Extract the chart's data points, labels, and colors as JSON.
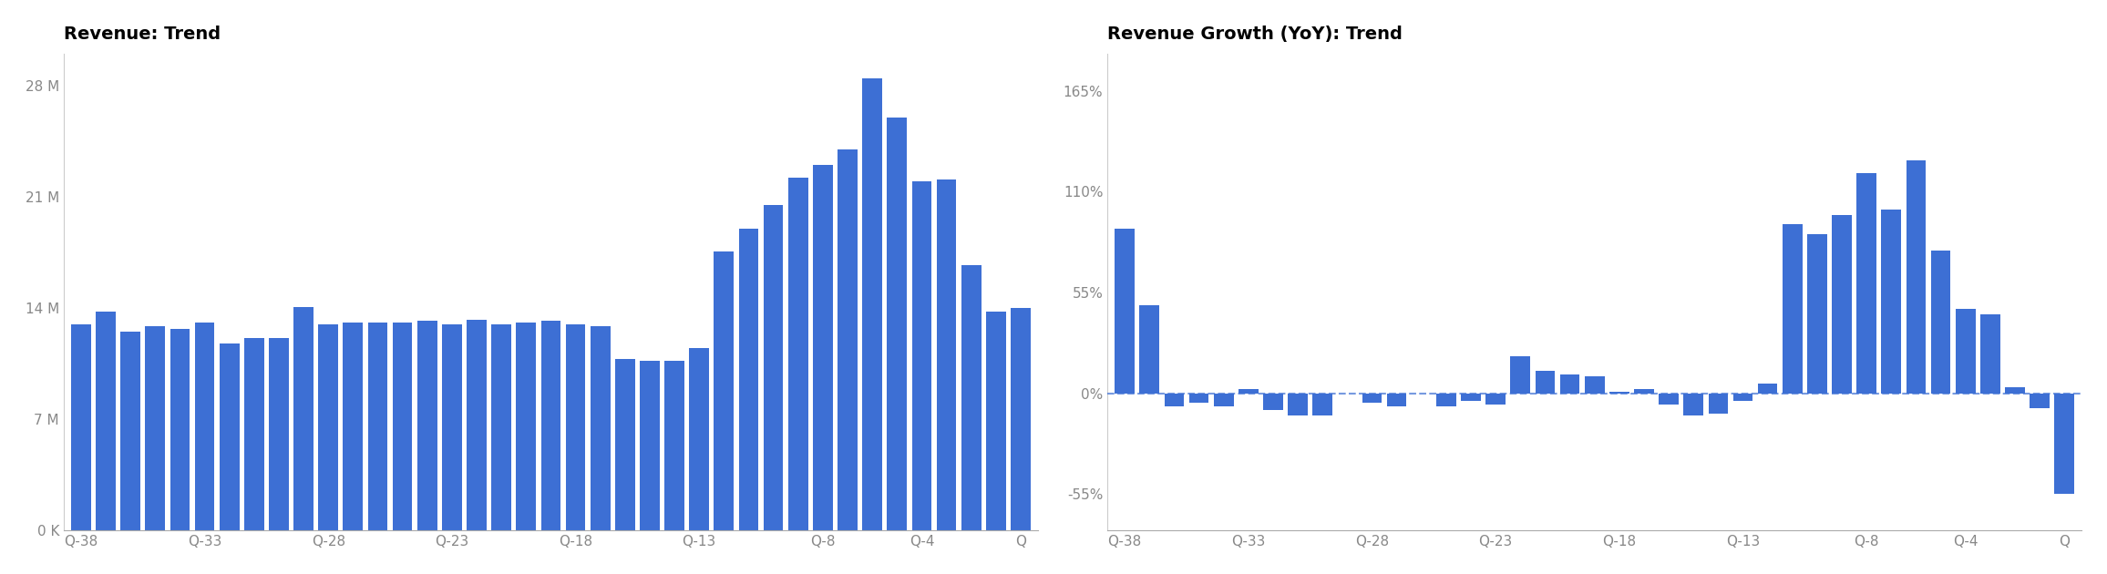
{
  "title1": "Revenue: Trend",
  "title2": "Revenue Growth (YoY): Trend",
  "bar_color": "#3d6fd4",
  "background_color": "#ffffff",
  "revenue_values": [
    13000000,
    13800000,
    12500000,
    12900000,
    12700000,
    13100000,
    11800000,
    12100000,
    12100000,
    14100000,
    13000000,
    13100000,
    13100000,
    13100000,
    13200000,
    13000000,
    13300000,
    13000000,
    13100000,
    13200000,
    13000000,
    12900000,
    10800000,
    10700000,
    10700000,
    11500000,
    17600000,
    19000000,
    20500000,
    22200000,
    23000000,
    24000000,
    28500000,
    26000000,
    22000000,
    22100000,
    16700000,
    13800000,
    14000000
  ],
  "yoy_values": [
    90,
    48,
    -7,
    -5,
    -7,
    2,
    -9,
    -12,
    -12,
    0,
    -5,
    -7,
    0,
    -7,
    -4,
    -6,
    20,
    12,
    10,
    9,
    1,
    2,
    -6,
    -12,
    -11,
    -4,
    5,
    92,
    87,
    97,
    120,
    100,
    127,
    78,
    46,
    43,
    3,
    -8,
    -55
  ],
  "x_labels_rev": [
    "Q-38",
    "Q-33",
    "Q-28",
    "Q-23",
    "Q-18",
    "Q-13",
    "Q-8",
    "Q-4",
    "Q"
  ],
  "x_labels_yoy": [
    "Q-38",
    "Q-33",
    "Q-28",
    "Q-23",
    "Q-18",
    "Q-13",
    "Q-8",
    "Q-4",
    "Q"
  ],
  "rev_yticks": [
    0,
    7000000,
    14000000,
    21000000,
    28000000
  ],
  "rev_ytick_labels": [
    "0 K",
    "7 M",
    "14 M",
    "21 M",
    "28 M"
  ],
  "yoy_yticks": [
    -55,
    0,
    55,
    110,
    165
  ],
  "yoy_ytick_labels": [
    "-55%",
    "0%",
    "55%",
    "110%",
    "165%"
  ],
  "x_tick_positions": [
    0,
    5,
    10,
    15,
    20,
    25,
    30,
    34,
    38
  ],
  "title_fontsize": 14,
  "tick_fontsize": 11,
  "tick_color": "#888888"
}
